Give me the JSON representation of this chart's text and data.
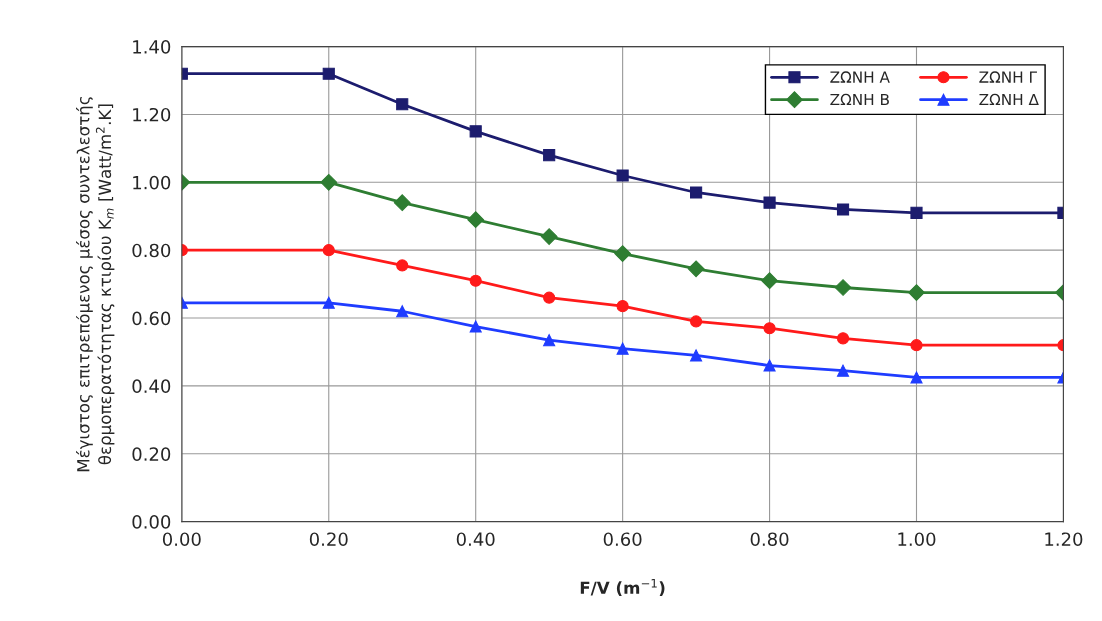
{
  "chart_data": {
    "type": "line",
    "xlabel": "F/V (m$^{−1}$)",
    "ylabel": "Μέγιστος επιτρεπόμενος μέσος συντελεστής\nθερμοπερατότητας κτιρίου K$_{m}$ [Watt/m$^{2}$.K]",
    "x": [
      0.0,
      0.2,
      0.3,
      0.4,
      0.5,
      0.6,
      0.7,
      0.8,
      0.9,
      1.0,
      1.2
    ],
    "series": [
      {
        "name": "ΖΩΝΗ Α",
        "color": "#1c1c6e",
        "marker": "square",
        "values": [
          1.32,
          1.32,
          1.23,
          1.15,
          1.08,
          1.02,
          0.97,
          0.94,
          0.92,
          0.91,
          0.91
        ]
      },
      {
        "name": "ΖΩΝΗ Β",
        "color": "#2e7d32",
        "marker": "diamond",
        "values": [
          1.0,
          1.0,
          0.94,
          0.89,
          0.84,
          0.79,
          0.745,
          0.71,
          0.69,
          0.675,
          0.675
        ]
      },
      {
        "name": "ΖΩΝΗ Γ",
        "color": "#ff1a1a",
        "marker": "circle",
        "values": [
          0.8,
          0.8,
          0.755,
          0.71,
          0.66,
          0.635,
          0.59,
          0.57,
          0.54,
          0.52,
          0.52
        ]
      },
      {
        "name": "ΖΩΝΗ Δ",
        "color": "#1f3cff",
        "marker": "triangle",
        "values": [
          0.645,
          0.645,
          0.62,
          0.575,
          0.535,
          0.51,
          0.49,
          0.46,
          0.445,
          0.425,
          0.425
        ]
      }
    ],
    "xlim": [
      0,
      1.2
    ],
    "xticks": [
      {
        "value": 0,
        "label": "0.00"
      },
      {
        "value": 0.2,
        "label": "0.20"
      },
      {
        "value": 0.4,
        "label": "0.40"
      },
      {
        "value": 0.6,
        "label": "0.60"
      },
      {
        "value": 0.8,
        "label": "0.80"
      },
      {
        "value": 1.0,
        "label": "1.00"
      },
      {
        "value": 1.2,
        "label": "1.20"
      }
    ],
    "ylim": [
      0,
      1.4
    ],
    "yticks": [
      {
        "value": 0,
        "label": "0.00"
      },
      {
        "value": 0.2,
        "label": "0.20"
      },
      {
        "value": 0.4,
        "label": "0.40"
      },
      {
        "value": 0.6,
        "label": "0.60"
      },
      {
        "value": 0.8,
        "label": "0.80"
      },
      {
        "value": 1.0,
        "label": "1.00"
      },
      {
        "value": 1.2,
        "label": "1.20"
      },
      {
        "value": 1.4,
        "label": "1.40"
      }
    ],
    "grid": true,
    "legend": "top right",
    "line_style": "solid"
  }
}
